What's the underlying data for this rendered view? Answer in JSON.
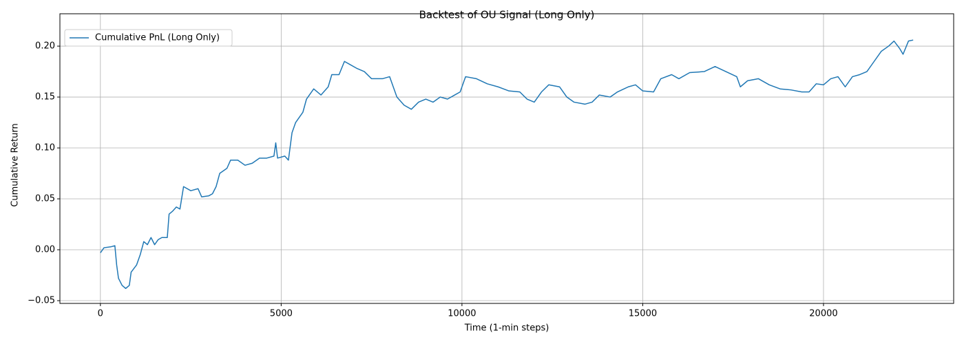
{
  "chart_data": {
    "type": "line",
    "title": "Backtest of OU Signal (Long Only)",
    "x_label": "Time (1-min steps)",
    "y_label": "Cumulative Return",
    "xlim": [
      -1120,
      23600
    ],
    "ylim": [
      -0.0527,
      0.2318
    ],
    "xticks": [
      0,
      5000,
      10000,
      15000,
      20000
    ],
    "yticks": [
      {
        "value": -0.05,
        "label": "−0.05"
      },
      {
        "value": 0,
        "label": "0.00"
      },
      {
        "value": 0.05,
        "label": "0.05"
      },
      {
        "value": 0.1,
        "label": "0.10"
      },
      {
        "value": 0.15,
        "label": "0.15"
      },
      {
        "value": 0.2,
        "label": "0.20"
      }
    ],
    "grid": true,
    "legend": "upper left",
    "x": [
      0,
      100,
      300,
      400,
      450,
      500,
      600,
      700,
      800,
      850,
      1000,
      1100,
      1200,
      1300,
      1400,
      1500,
      1600,
      1700,
      1850,
      1900,
      2000,
      2100,
      2200,
      2300,
      2500,
      2700,
      2800,
      3000,
      3100,
      3200,
      3300,
      3500,
      3600,
      3800,
      4000,
      4200,
      4400,
      4600,
      4800,
      4850,
      4900,
      5100,
      5200,
      5300,
      5400,
      5600,
      5700,
      5900,
      6100,
      6300,
      6400,
      6600,
      6750,
      6900,
      7100,
      7300,
      7500,
      7800,
      8000,
      8200,
      8400,
      8600,
      8800,
      9000,
      9200,
      9400,
      9600,
      9800,
      9950,
      10100,
      10400,
      10700,
      11000,
      11300,
      11600,
      11800,
      12000,
      12200,
      12400,
      12700,
      12900,
      13100,
      13400,
      13600,
      13800,
      14100,
      14300,
      14600,
      14800,
      15000,
      15300,
      15500,
      15800,
      16000,
      16300,
      16700,
      17000,
      17300,
      17600,
      17700,
      17900,
      18200,
      18500,
      18800,
      19100,
      19400,
      19600,
      19800,
      20000,
      20200,
      20400,
      20600,
      20800,
      21000,
      21200,
      21400,
      21600,
      21800,
      21950,
      22100,
      22200,
      22350,
      22480
    ],
    "series": [
      {
        "name": "Cumulative PnL (Long Only)",
        "color": "#1f77b4",
        "values": [
          -0.003,
          0.002,
          0.003,
          0.004,
          -0.015,
          -0.028,
          -0.035,
          -0.038,
          -0.035,
          -0.022,
          -0.015,
          -0.005,
          0.008,
          0.005,
          0.012,
          0.005,
          0.01,
          0.012,
          0.012,
          0.035,
          0.038,
          0.042,
          0.04,
          0.062,
          0.058,
          0.06,
          0.052,
          0.053,
          0.055,
          0.062,
          0.075,
          0.08,
          0.088,
          0.088,
          0.083,
          0.085,
          0.09,
          0.09,
          0.092,
          0.105,
          0.09,
          0.092,
          0.088,
          0.115,
          0.125,
          0.135,
          0.148,
          0.158,
          0.152,
          0.16,
          0.172,
          0.172,
          0.185,
          0.182,
          0.178,
          0.175,
          0.168,
          0.168,
          0.17,
          0.15,
          0.142,
          0.138,
          0.145,
          0.148,
          0.145,
          0.15,
          0.148,
          0.152,
          0.155,
          0.17,
          0.168,
          0.163,
          0.16,
          0.156,
          0.155,
          0.148,
          0.145,
          0.155,
          0.162,
          0.16,
          0.15,
          0.145,
          0.143,
          0.145,
          0.152,
          0.15,
          0.155,
          0.16,
          0.162,
          0.156,
          0.155,
          0.168,
          0.172,
          0.168,
          0.174,
          0.175,
          0.18,
          0.175,
          0.17,
          0.16,
          0.166,
          0.168,
          0.162,
          0.158,
          0.157,
          0.155,
          0.155,
          0.163,
          0.162,
          0.168,
          0.17,
          0.16,
          0.17,
          0.172,
          0.175,
          0.185,
          0.195,
          0.2,
          0.205,
          0.198,
          0.192,
          0.205,
          0.206
        ]
      }
    ]
  }
}
